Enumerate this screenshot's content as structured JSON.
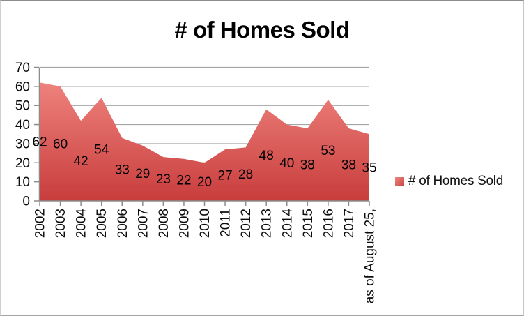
{
  "chart_data": {
    "type": "area",
    "title": "# of Homes Sold",
    "series_name": "# of Homes Sold",
    "categories": [
      "2002",
      "2003",
      "2004",
      "2005",
      "2006",
      "2007",
      "2008",
      "2009",
      "2010",
      "2011",
      "2012",
      "2013",
      "2014",
      "2015",
      "2016",
      "2017",
      "as of August 25,"
    ],
    "values": [
      62,
      60,
      42,
      54,
      33,
      29,
      23,
      22,
      20,
      27,
      28,
      48,
      40,
      38,
      53,
      38,
      35
    ],
    "xlabel": "",
    "ylabel": "",
    "ylim": [
      0,
      70
    ],
    "yticks": [
      0,
      10,
      20,
      30,
      40,
      50,
      60,
      70
    ],
    "grid": true,
    "data_labels": true,
    "legend_position": "right",
    "colors": {
      "area_gradient_top": "#ee827c",
      "area_gradient_bottom": "#c83d3d",
      "gridline": "#a4a4a4",
      "axis": "#8c8c8c",
      "label_text": "#0d0d0d"
    }
  }
}
